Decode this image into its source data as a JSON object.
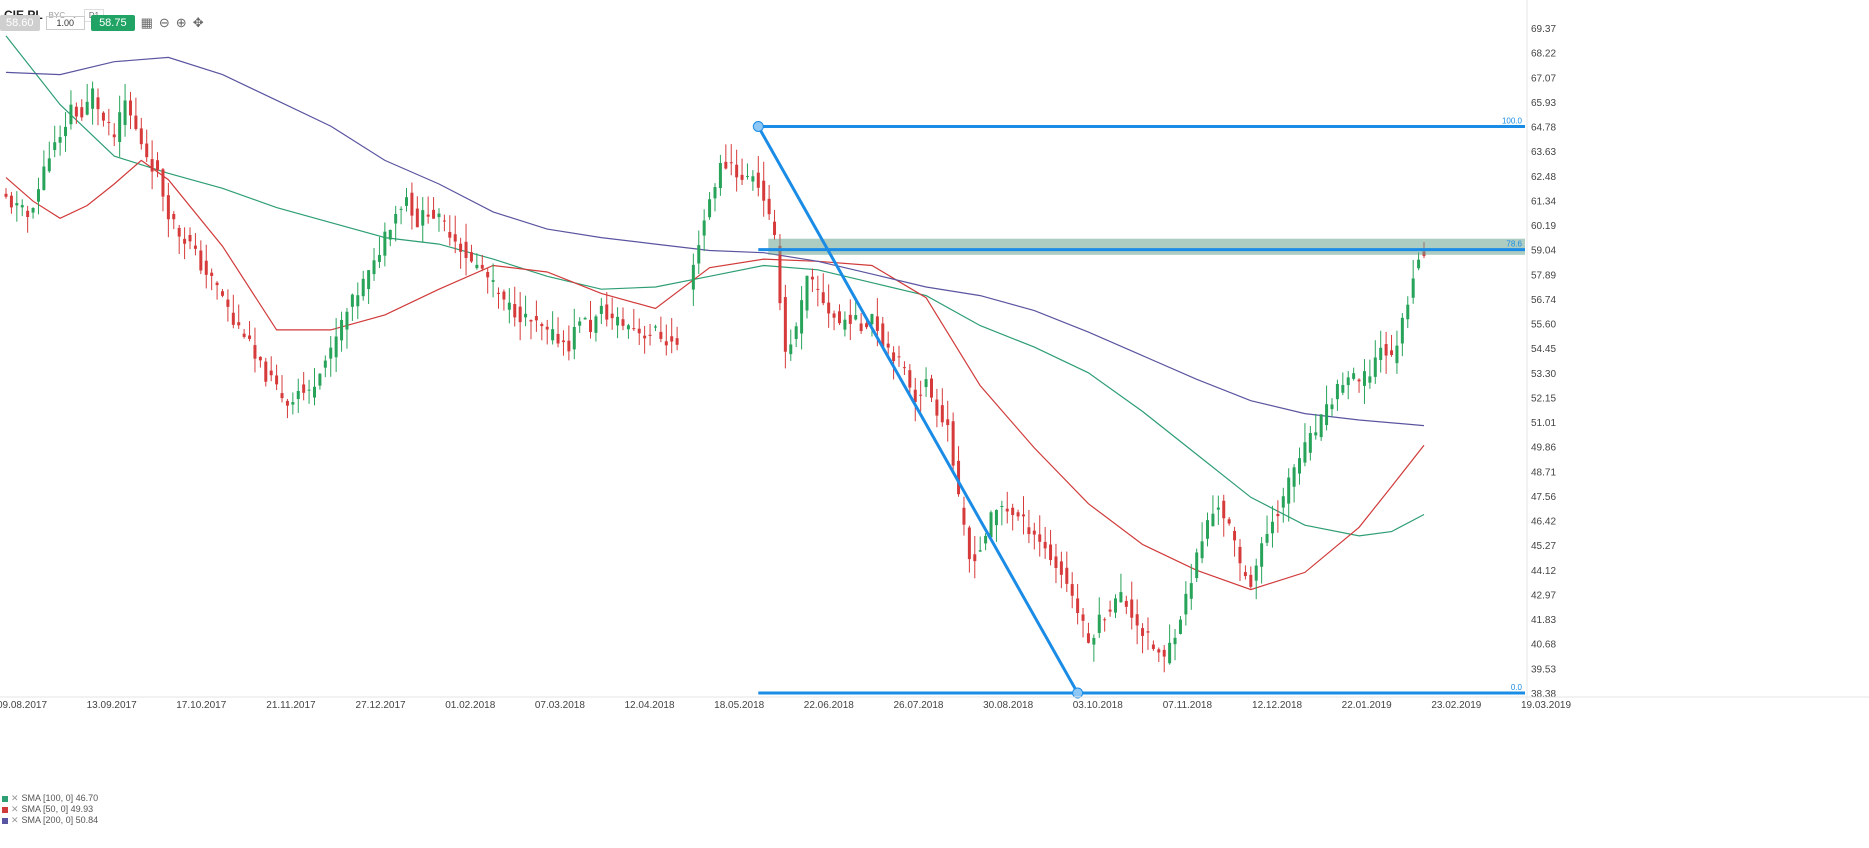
{
  "toolbar": {
    "symbol": "CIE.PL",
    "exchange": "BYC",
    "timeframe": "D1",
    "bid": "58.60",
    "quantity": "1.00",
    "ask": "58.75"
  },
  "indicators": [
    {
      "label": "SMA [100, 0] 46.70",
      "color": "#2e9e74"
    },
    {
      "label": "SMA [50, 0] 49.93",
      "color": "#d13a3a"
    },
    {
      "label": "SMA [200, 0] 50.84",
      "color": "#5a55a0"
    }
  ],
  "fib": {
    "label_top": "100.0",
    "label_mid": "78.6",
    "label_bottom": "0.0"
  },
  "chart_data": {
    "type": "candlestick",
    "y_ticks": [
      "69.37",
      "68.22",
      "67.07",
      "65.93",
      "64.78",
      "63.63",
      "62.48",
      "61.34",
      "60.19",
      "59.04",
      "57.89",
      "56.74",
      "55.60",
      "54.45",
      "53.30",
      "52.15",
      "51.01",
      "49.86",
      "48.71",
      "47.56",
      "46.42",
      "45.27",
      "44.12",
      "42.97",
      "41.83",
      "40.68",
      "39.53",
      "38.38"
    ],
    "x_ticks": [
      "09.08.2017",
      "13.09.2017",
      "17.10.2017",
      "21.11.2017",
      "27.12.2017",
      "01.02.2018",
      "07.03.2018",
      "12.04.2018",
      "18.05.2018",
      "22.06.2018",
      "26.07.2018",
      "30.08.2018",
      "03.10.2018",
      "07.11.2018",
      "12.12.2018",
      "22.01.2019",
      "23.02.2019",
      "19.03.2019"
    ],
    "ylim": [
      38.38,
      69.37
    ],
    "path": [
      [
        0,
        61.4
      ],
      [
        2,
        61.0
      ],
      [
        4,
        60.6
      ],
      [
        6,
        61.9
      ],
      [
        8,
        63.6
      ],
      [
        10,
        64.1
      ],
      [
        12,
        65.7
      ],
      [
        14,
        65.2
      ],
      [
        16,
        66.4
      ],
      [
        18,
        65.0
      ],
      [
        20,
        64.3
      ],
      [
        22,
        65.9
      ],
      [
        24,
        64.6
      ],
      [
        26,
        63.5
      ],
      [
        28,
        62.5
      ],
      [
        30,
        60.8
      ],
      [
        32,
        59.8
      ],
      [
        34,
        59.3
      ],
      [
        36,
        58.3
      ],
      [
        38,
        57.6
      ],
      [
        40,
        56.9
      ],
      [
        42,
        55.6
      ],
      [
        44,
        55.2
      ],
      [
        46,
        53.9
      ],
      [
        48,
        53.2
      ],
      [
        50,
        52.6
      ],
      [
        52,
        51.9
      ],
      [
        54,
        52.5
      ],
      [
        56,
        52.3
      ],
      [
        58,
        53.6
      ],
      [
        60,
        54.2
      ],
      [
        62,
        55.6
      ],
      [
        64,
        56.6
      ],
      [
        66,
        57.5
      ],
      [
        68,
        58.3
      ],
      [
        70,
        59.8
      ],
      [
        72,
        60.8
      ],
      [
        74,
        61.5
      ],
      [
        76,
        60.3
      ],
      [
        78,
        60.9
      ],
      [
        80,
        60.4
      ],
      [
        82,
        59.9
      ],
      [
        84,
        59.2
      ],
      [
        86,
        58.4
      ],
      [
        88,
        58.1
      ],
      [
        90,
        57.3
      ],
      [
        92,
        56.5
      ],
      [
        94,
        56.2
      ],
      [
        96,
        55.8
      ],
      [
        98,
        55.5
      ],
      [
        100,
        55.1
      ],
      [
        102,
        54.9
      ],
      [
        104,
        54.6
      ],
      [
        106,
        55.9
      ],
      [
        108,
        55.4
      ],
      [
        110,
        56.2
      ],
      [
        112,
        55.8
      ],
      [
        114,
        55.6
      ],
      [
        116,
        55.4
      ],
      [
        118,
        55.1
      ],
      [
        120,
        55.2
      ],
      [
        122,
        54.8
      ],
      [
        124,
        54.6
      ],
      [
        126,
        56.9
      ],
      [
        128,
        59.5
      ],
      [
        130,
        61.4
      ],
      [
        132,
        62.9
      ],
      [
        134,
        63.1
      ],
      [
        136,
        62.2
      ],
      [
        138,
        62.6
      ],
      [
        140,
        61.5
      ],
      [
        142,
        59.4
      ],
      [
        144,
        54.3
      ],
      [
        146,
        55.3
      ],
      [
        148,
        57.6
      ],
      [
        150,
        57.1
      ],
      [
        152,
        56.2
      ],
      [
        154,
        55.6
      ],
      [
        156,
        55.9
      ],
      [
        158,
        55.4
      ],
      [
        160,
        56.1
      ],
      [
        162,
        54.8
      ],
      [
        164,
        54.2
      ],
      [
        166,
        53.3
      ],
      [
        168,
        52.2
      ],
      [
        170,
        52.8
      ],
      [
        172,
        51.6
      ],
      [
        174,
        50.9
      ],
      [
        176,
        47.3
      ],
      [
        178,
        44.6
      ],
      [
        180,
        45.1
      ],
      [
        182,
        46.5
      ],
      [
        184,
        47.1
      ],
      [
        186,
        46.8
      ],
      [
        188,
        46.3
      ],
      [
        190,
        45.9
      ],
      [
        192,
        45.1
      ],
      [
        194,
        44.3
      ],
      [
        196,
        43.6
      ],
      [
        198,
        42.2
      ],
      [
        200,
        40.7
      ],
      [
        202,
        41.8
      ],
      [
        204,
        42.4
      ],
      [
        206,
        42.9
      ],
      [
        208,
        42.1
      ],
      [
        210,
        41.2
      ],
      [
        212,
        40.5
      ],
      [
        214,
        39.9
      ],
      [
        216,
        41.3
      ],
      [
        218,
        42.8
      ],
      [
        220,
        44.7
      ],
      [
        222,
        46.3
      ],
      [
        224,
        47.2
      ],
      [
        226,
        46.1
      ],
      [
        228,
        44.3
      ],
      [
        230,
        43.6
      ],
      [
        232,
        45.1
      ],
      [
        234,
        46.5
      ],
      [
        236,
        47.4
      ],
      [
        238,
        48.9
      ],
      [
        240,
        49.8
      ],
      [
        242,
        50.6
      ],
      [
        244,
        51.5
      ],
      [
        246,
        52.6
      ],
      [
        248,
        53.1
      ],
      [
        250,
        52.8
      ],
      [
        252,
        53.3
      ],
      [
        254,
        54.6
      ],
      [
        256,
        53.9
      ],
      [
        258,
        55.7
      ],
      [
        260,
        57.9
      ],
      [
        261,
        58.75
      ]
    ],
    "series": [
      {
        "name": "SMA [100, 0]",
        "color": "#2e9e74",
        "points": [
          [
            0,
            69.0
          ],
          [
            10,
            65.8
          ],
          [
            20,
            63.4
          ],
          [
            30,
            62.6
          ],
          [
            40,
            61.9
          ],
          [
            50,
            61.0
          ],
          [
            60,
            60.3
          ],
          [
            70,
            59.6
          ],
          [
            80,
            59.3
          ],
          [
            90,
            58.6
          ],
          [
            100,
            57.8
          ],
          [
            110,
            57.2
          ],
          [
            120,
            57.3
          ],
          [
            130,
            57.8
          ],
          [
            140,
            58.3
          ],
          [
            150,
            58.1
          ],
          [
            160,
            57.5
          ],
          [
            170,
            56.9
          ],
          [
            180,
            55.5
          ],
          [
            190,
            54.5
          ],
          [
            200,
            53.3
          ],
          [
            210,
            51.5
          ],
          [
            220,
            49.5
          ],
          [
            230,
            47.5
          ],
          [
            240,
            46.2
          ],
          [
            250,
            45.7
          ],
          [
            256,
            45.9
          ],
          [
            262,
            46.7
          ]
        ]
      },
      {
        "name": "SMA [50, 0]",
        "color": "#d13a3a",
        "points": [
          [
            0,
            62.4
          ],
          [
            5,
            61.3
          ],
          [
            10,
            60.5
          ],
          [
            15,
            61.1
          ],
          [
            20,
            62.1
          ],
          [
            25,
            63.2
          ],
          [
            30,
            62.3
          ],
          [
            40,
            59.2
          ],
          [
            50,
            55.3
          ],
          [
            60,
            55.3
          ],
          [
            70,
            56.0
          ],
          [
            80,
            57.2
          ],
          [
            90,
            58.3
          ],
          [
            100,
            58.0
          ],
          [
            110,
            57.0
          ],
          [
            120,
            56.3
          ],
          [
            130,
            58.2
          ],
          [
            140,
            58.6
          ],
          [
            150,
            58.5
          ],
          [
            160,
            58.3
          ],
          [
            170,
            56.8
          ],
          [
            180,
            52.7
          ],
          [
            190,
            49.8
          ],
          [
            200,
            47.2
          ],
          [
            210,
            45.3
          ],
          [
            220,
            44.1
          ],
          [
            230,
            43.2
          ],
          [
            240,
            44.0
          ],
          [
            250,
            46.1
          ],
          [
            256,
            48.0
          ],
          [
            262,
            49.93
          ]
        ]
      },
      {
        "name": "SMA [200, 0]",
        "color": "#5a55a0",
        "points": [
          [
            0,
            67.3
          ],
          [
            10,
            67.2
          ],
          [
            20,
            67.8
          ],
          [
            30,
            68.0
          ],
          [
            40,
            67.2
          ],
          [
            50,
            66.0
          ],
          [
            60,
            64.8
          ],
          [
            70,
            63.2
          ],
          [
            80,
            62.1
          ],
          [
            90,
            60.8
          ],
          [
            100,
            60.0
          ],
          [
            110,
            59.6
          ],
          [
            120,
            59.3
          ],
          [
            130,
            59.0
          ],
          [
            140,
            58.9
          ],
          [
            150,
            58.5
          ],
          [
            160,
            57.9
          ],
          [
            170,
            57.3
          ],
          [
            180,
            56.9
          ],
          [
            190,
            56.2
          ],
          [
            200,
            55.2
          ],
          [
            210,
            54.1
          ],
          [
            220,
            53.0
          ],
          [
            230,
            52.0
          ],
          [
            240,
            51.4
          ],
          [
            250,
            51.1
          ],
          [
            262,
            50.84
          ]
        ]
      }
    ],
    "fibonacci": {
      "high": 64.78,
      "level_786": 59.04,
      "low": 38.38,
      "zone": [
        58.8,
        59.55
      ]
    },
    "trendline": {
      "from": [
        139,
        64.78
      ],
      "to": [
        198,
        38.38
      ]
    }
  }
}
